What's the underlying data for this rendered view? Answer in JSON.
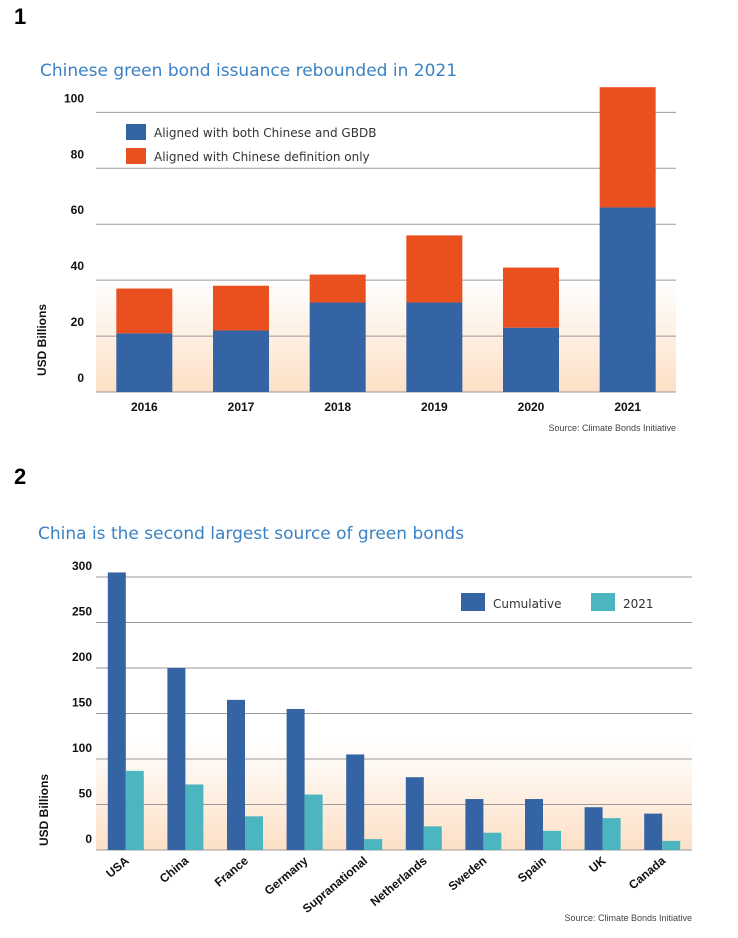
{
  "figure_numbers": [
    "1",
    "2"
  ],
  "colors": {
    "blue": "#3464a3",
    "orange": "#ea4f1f",
    "teal": "#4cb6c0",
    "title": "#3a82c4",
    "band": "#fde0c6"
  },
  "chart_data": [
    {
      "type": "bar",
      "stacked": true,
      "title": "Chinese green bond issuance rebounded in 2021",
      "ylabel": "USD Billions",
      "xlabel": "",
      "ylim": [
        0,
        108
      ],
      "yticks": [
        0,
        20,
        40,
        60,
        80,
        100
      ],
      "grid": true,
      "legend_position": "top-left",
      "categories": [
        "2016",
        "2017",
        "2018",
        "2019",
        "2020",
        "2021"
      ],
      "series": [
        {
          "name": "Aligned with both Chinese and GBDB",
          "color": "#3464a3",
          "values": [
            21,
            22,
            32,
            32,
            23,
            66
          ]
        },
        {
          "name": "Aligned with Chinese definition only",
          "color": "#ea4f1f",
          "values": [
            16,
            16,
            10,
            24,
            21.5,
            43
          ]
        }
      ],
      "source": "Source: Climate Bonds Initiative"
    },
    {
      "type": "bar",
      "stacked": false,
      "title": "China is the second largest source of green bonds",
      "ylabel": "USD Billions",
      "xlabel": "",
      "ylim": [
        0,
        300
      ],
      "yticks": [
        0,
        50,
        100,
        150,
        200,
        250,
        300
      ],
      "grid": true,
      "legend_position": "top-right",
      "categories": [
        "USA",
        "China",
        "France",
        "Germany",
        "Supranational",
        "Netherlands",
        "Sweden",
        "Spain",
        "UK",
        "Canada"
      ],
      "series": [
        {
          "name": "Cumulative",
          "color": "#3464a3",
          "values": [
            305,
            200,
            165,
            155,
            105,
            80,
            56,
            56,
            47,
            40
          ]
        },
        {
          "name": "2021",
          "color": "#4cb6c0",
          "values": [
            87,
            72,
            37,
            61,
            12,
            26,
            19,
            21,
            35,
            10
          ]
        }
      ],
      "source": "Source: Climate Bonds Initiative"
    }
  ]
}
